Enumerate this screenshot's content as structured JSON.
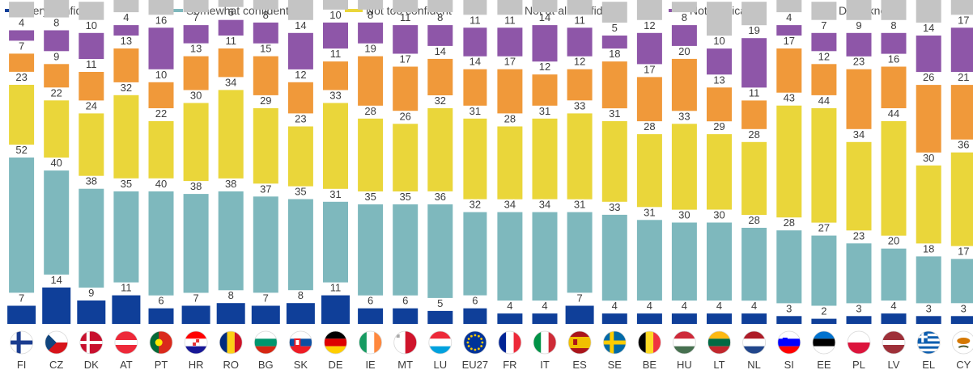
{
  "chart_data": {
    "type": "bar",
    "stacked": true,
    "categories": [
      "FI",
      "CZ",
      "DK",
      "AT",
      "PT",
      "HR",
      "RO",
      "BG",
      "SK",
      "DE",
      "IE",
      "MT",
      "LU",
      "EU27",
      "FR",
      "IT",
      "ES",
      "SE",
      "BE",
      "HU",
      "LT",
      "NL",
      "SI",
      "EE",
      "PL",
      "LV",
      "EL",
      "CY"
    ],
    "series": [
      {
        "name": "Very confident",
        "color": "#0f3f99",
        "values": [
          7,
          14,
          9,
          11,
          6,
          7,
          8,
          7,
          8,
          11,
          6,
          6,
          5,
          6,
          4,
          4,
          7,
          4,
          4,
          4,
          4,
          4,
          3,
          2,
          3,
          4,
          3,
          3
        ]
      },
      {
        "name": "Somewhat confident",
        "color": "#7eb8bd",
        "values": [
          52,
          40,
          38,
          35,
          40,
          38,
          38,
          37,
          35,
          31,
          35,
          35,
          36,
          32,
          34,
          34,
          31,
          33,
          31,
          30,
          30,
          28,
          28,
          27,
          23,
          20,
          18,
          17
        ]
      },
      {
        "name": "Not too confident",
        "color": "#ead63a",
        "values": [
          23,
          22,
          24,
          32,
          22,
          30,
          34,
          29,
          23,
          33,
          28,
          26,
          32,
          31,
          28,
          31,
          33,
          31,
          28,
          33,
          29,
          28,
          43,
          44,
          34,
          44,
          30,
          36
        ]
      },
      {
        "name": "Not at all confident",
        "color": "#f0993a",
        "values": [
          7,
          9,
          11,
          13,
          10,
          13,
          11,
          15,
          12,
          11,
          19,
          17,
          14,
          14,
          17,
          12,
          12,
          18,
          17,
          20,
          13,
          11,
          17,
          12,
          23,
          16,
          26,
          21
        ]
      },
      {
        "name": "Not applicable",
        "color": "#8e56a8",
        "values": [
          4,
          8,
          10,
          4,
          16,
          7,
          6,
          8,
          14,
          10,
          8,
          11,
          8,
          11,
          11,
          14,
          11,
          5,
          12,
          8,
          10,
          19,
          4,
          7,
          9,
          8,
          14,
          17
        ]
      },
      {
        "name": "Don’t know",
        "color": "#c4c4c4",
        "values": [
          6,
          8,
          7,
          5,
          6,
          5,
          3,
          4,
          8,
          5,
          4,
          5,
          6,
          6,
          6,
          5,
          6,
          8,
          8,
          4,
          13,
          9,
          6,
          7,
          8,
          8,
          9,
          7
        ]
      }
    ],
    "highlight_category": "EU27",
    "legend_position": "top",
    "grid": false
  },
  "flags": {
    "FI": {
      "icon": "finland-flag-icon",
      "colors": [
        "#ffffff",
        "#1a3c8f"
      ]
    },
    "CZ": {
      "icon": "czech-flag-icon",
      "colors": [
        "#ffffff",
        "#d7141a",
        "#11457e"
      ]
    },
    "DK": {
      "icon": "denmark-flag-icon",
      "colors": [
        "#c8102e",
        "#ffffff"
      ]
    },
    "AT": {
      "icon": "austria-flag-icon",
      "colors": [
        "#ed2939",
        "#ffffff"
      ]
    },
    "PT": {
      "icon": "portugal-flag-icon",
      "colors": [
        "#046a38",
        "#da291c",
        "#ffe900"
      ]
    },
    "HR": {
      "icon": "croatia-flag-icon",
      "colors": [
        "#ff0000",
        "#ffffff",
        "#171796"
      ]
    },
    "RO": {
      "icon": "romania-flag-icon",
      "colors": [
        "#002b7f",
        "#fcd116",
        "#ce1126"
      ]
    },
    "BG": {
      "icon": "bulgaria-flag-icon",
      "colors": [
        "#ffffff",
        "#00966e",
        "#d62612"
      ]
    },
    "SK": {
      "icon": "slovakia-flag-icon",
      "colors": [
        "#ffffff",
        "#0b4ea2",
        "#ee1c25"
      ]
    },
    "DE": {
      "icon": "germany-flag-icon",
      "colors": [
        "#000000",
        "#dd0000",
        "#ffce00"
      ]
    },
    "IE": {
      "icon": "ireland-flag-icon",
      "colors": [
        "#169b62",
        "#ffffff",
        "#ff883e"
      ]
    },
    "MT": {
      "icon": "malta-flag-icon",
      "colors": [
        "#ffffff",
        "#cf142b"
      ]
    },
    "LU": {
      "icon": "luxembourg-flag-icon",
      "colors": [
        "#ed2939",
        "#ffffff",
        "#00a1de"
      ]
    },
    "EU27": {
      "icon": "eu-flag-icon",
      "colors": [
        "#003399",
        "#ffcc00"
      ]
    },
    "FR": {
      "icon": "france-flag-icon",
      "colors": [
        "#002395",
        "#ffffff",
        "#ed2939"
      ]
    },
    "IT": {
      "icon": "italy-flag-icon",
      "colors": [
        "#009246",
        "#ffffff",
        "#ce2b37"
      ]
    },
    "ES": {
      "icon": "spain-flag-icon",
      "colors": [
        "#aa151b",
        "#f1bf00"
      ]
    },
    "SE": {
      "icon": "sweden-flag-icon",
      "colors": [
        "#006aa7",
        "#fecc00"
      ]
    },
    "BE": {
      "icon": "belgium-flag-icon",
      "colors": [
        "#000000",
        "#fdda24",
        "#ef3340"
      ]
    },
    "HU": {
      "icon": "hungary-flag-icon",
      "colors": [
        "#ce2939",
        "#ffffff",
        "#477050"
      ]
    },
    "LT": {
      "icon": "lithuania-flag-icon",
      "colors": [
        "#fdb913",
        "#006a44",
        "#c1272d"
      ]
    },
    "NL": {
      "icon": "netherlands-flag-icon",
      "colors": [
        "#ae1c28",
        "#ffffff",
        "#21468b"
      ]
    },
    "SI": {
      "icon": "slovenia-flag-icon",
      "colors": [
        "#ffffff",
        "#0000ff",
        "#ff0000"
      ]
    },
    "EE": {
      "icon": "estonia-flag-icon",
      "colors": [
        "#0072ce",
        "#000000",
        "#ffffff"
      ]
    },
    "PL": {
      "icon": "poland-flag-icon",
      "colors": [
        "#ffffff",
        "#dc143c"
      ]
    },
    "LV": {
      "icon": "latvia-flag-icon",
      "colors": [
        "#9e3039",
        "#ffffff"
      ]
    },
    "EL": {
      "icon": "greece-flag-icon",
      "colors": [
        "#0d5eaf",
        "#ffffff"
      ]
    },
    "CY": {
      "icon": "cyprus-flag-icon",
      "colors": [
        "#ffffff",
        "#d57800",
        "#4e5b31"
      ]
    }
  }
}
